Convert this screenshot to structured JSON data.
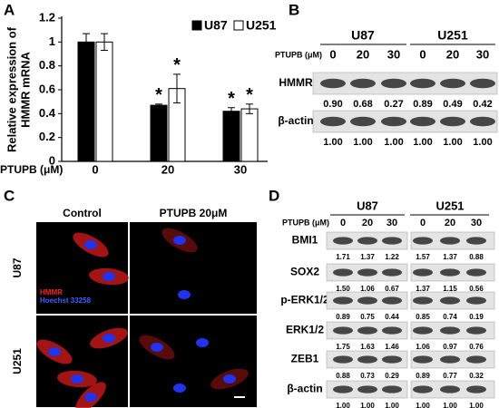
{
  "panel_labels": [
    "A",
    "B",
    "C",
    "D"
  ],
  "chart_data": {
    "type": "bar",
    "y_label": [
      "Relative expression of",
      "HMMR mRNA"
    ],
    "x_label": "PTUPB (μM)",
    "categories": [
      "0",
      "20",
      "30"
    ],
    "series": [
      {
        "name": "U87",
        "color": "#000000",
        "values": [
          1.0,
          0.47,
          0.42
        ],
        "errors": [
          0.07,
          0.01,
          0.03
        ],
        "significance": [
          null,
          "*",
          "*"
        ]
      },
      {
        "name": "U251",
        "color": "#ffffff",
        "values": [
          1.0,
          0.61,
          0.44
        ],
        "errors": [
          0.07,
          0.12,
          0.04
        ],
        "significance": [
          null,
          "*",
          "*"
        ]
      }
    ],
    "ylim": [
      0,
      1.2
    ],
    "yticks": [
      0,
      0.2,
      0.4,
      0.6,
      0.8,
      1,
      1.2
    ],
    "legend": "upper right"
  },
  "panel_b": {
    "treatment_label": "PTUPB (μM)",
    "groups": [
      "U87",
      "U251"
    ],
    "doses": [
      "0",
      "20",
      "30",
      "0",
      "20",
      "30"
    ],
    "rows": [
      {
        "label": "HMMR",
        "values": [
          "0.90",
          "0.68",
          "0.27",
          "0.89",
          "0.49",
          "0.42"
        ]
      },
      {
        "label": "β-actin",
        "values": [
          "1.00",
          "1.00",
          "1.00",
          "1.00",
          "1.00",
          "1.00"
        ]
      }
    ]
  },
  "panel_c": {
    "columns": [
      "Control",
      "PTUPB 20μM"
    ],
    "rows": [
      "U87",
      "U251"
    ],
    "stain_labels": [
      "HMMR",
      "Hoechst 33258"
    ]
  },
  "panel_d": {
    "treatment_label": "PTUPB (μM)",
    "groups": [
      "U87",
      "U251"
    ],
    "doses": [
      "0",
      "20",
      "30",
      "0",
      "20",
      "30"
    ],
    "rows": [
      {
        "label": "BMI1",
        "values": [
          "1.71",
          "1.37",
          "1.22",
          "1.57",
          "1.37",
          "0.88"
        ]
      },
      {
        "label": "SOX2",
        "values": [
          "1.50",
          "1.06",
          "0.67",
          "1.37",
          "1.15",
          "0.56"
        ]
      },
      {
        "label": "p-ERK1/2",
        "values": [
          "0.89",
          "0.75",
          "0.44",
          "0.85",
          "0.74",
          "0.19"
        ]
      },
      {
        "label": "ERK1/2",
        "values": [
          "1.75",
          "1.63",
          "1.46",
          "1.06",
          "0.97",
          "0.76"
        ]
      },
      {
        "label": "ZEB1",
        "values": [
          "0.88",
          "0.73",
          "0.29",
          "0.89",
          "0.77",
          "0.32"
        ]
      },
      {
        "label": "β-actin",
        "values": [
          "1.00",
          "1.00",
          "1.00",
          "1.00",
          "1.00",
          "1.00"
        ]
      }
    ]
  }
}
